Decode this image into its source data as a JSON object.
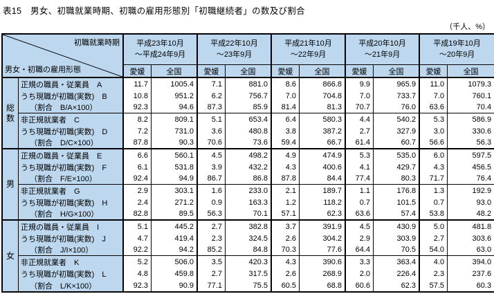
{
  "title": "表15　男女、初職就業時期、初職の雇用形態別「初職継続者」の数及び割合",
  "unit_note": "（千人、%）",
  "colors": {
    "header_bg": "#BDD7EE",
    "border": "#000000",
    "data_bg": "#FFFFFF"
  },
  "header": {
    "diagonal_top_label": "初職就業時期",
    "diagonal_bottom_label": "男女・初職の雇用形態",
    "periods": [
      {
        "line1": "平成23年10月",
        "line2": "～平成24年9月"
      },
      {
        "line1": "平成22年10月",
        "line2": "～23年9月"
      },
      {
        "line1": "平成21年10月",
        "line2": "～22年9月"
      },
      {
        "line1": "平成20年10月",
        "line2": "～21年9月"
      },
      {
        "line1": "平成19年10月",
        "line2": "～20年9月"
      }
    ],
    "region_labels": [
      "愛媛",
      "全国"
    ]
  },
  "groups": [
    {
      "name": "総数",
      "name_lines": [
        "総",
        "数"
      ],
      "rows": [
        {
          "label": "正規の職員・従業員　A",
          "indent": false,
          "values": [
            "11.7",
            "1005.4",
            "7.1",
            "881.0",
            "8.6",
            "866.8",
            "9.9",
            "965.9",
            "11.0",
            "1079.3"
          ]
        },
        {
          "label": "うち現職が初職(実数)　B",
          "indent": false,
          "values": [
            "10.8",
            "951.2",
            "6.2",
            "756.7",
            "7.0",
            "704.8",
            "7.0",
            "733.7",
            "7.0",
            "760.1"
          ]
        },
        {
          "label": "（割合　B/A×100）",
          "indent": true,
          "values": [
            "92.3",
            "94.6",
            "87.3",
            "85.9",
            "81.4",
            "81.3",
            "70.7",
            "76.0",
            "63.6",
            "70.4"
          ]
        },
        {
          "label": "非正規就業者　C",
          "indent": false,
          "values": [
            "8.2",
            "809.1",
            "5.1",
            "653.4",
            "6.4",
            "580.3",
            "4.4",
            "540.2",
            "5.3",
            "586.9"
          ]
        },
        {
          "label": "うち現職が初職(実数)　D",
          "indent": false,
          "values": [
            "7.2",
            "731.0",
            "3.6",
            "480.8",
            "3.8",
            "387.2",
            "2.7",
            "327.9",
            "3.0",
            "330.6"
          ]
        },
        {
          "label": "（割合　D/C×100）",
          "indent": true,
          "values": [
            "87.8",
            "90.3",
            "70.6",
            "73.6",
            "59.4",
            "66.7",
            "61.4",
            "60.7",
            "56.6",
            "56.3"
          ]
        }
      ]
    },
    {
      "name": "男",
      "name_lines": [
        "男"
      ],
      "rows": [
        {
          "label": "正規の職員・従業員　E",
          "indent": false,
          "values": [
            "6.6",
            "560.1",
            "4.5",
            "498.2",
            "4.9",
            "474.9",
            "5.3",
            "535.0",
            "6.0",
            "597.5"
          ]
        },
        {
          "label": "うち現職が初職(実数)　F",
          "indent": false,
          "values": [
            "6.1",
            "531.8",
            "3.9",
            "432.2",
            "4.3",
            "400.6",
            "4.1",
            "429.7",
            "4.3",
            "456.5"
          ]
        },
        {
          "label": "（割合　F/E×100）",
          "indent": true,
          "values": [
            "92.4",
            "94.9",
            "86.7",
            "86.8",
            "87.8",
            "84.4",
            "77.4",
            "80.3",
            "71.7",
            "76.4"
          ]
        },
        {
          "label": "非正規就業者　G",
          "indent": false,
          "values": [
            "2.9",
            "303.1",
            "1.6",
            "233.0",
            "2.1",
            "189.7",
            "1.1",
            "176.8",
            "1.3",
            "192.9"
          ]
        },
        {
          "label": "うち現職が初職(実数)　H",
          "indent": false,
          "values": [
            "2.4",
            "271.2",
            "0.9",
            "163.3",
            "1.2",
            "118.2",
            "0.7",
            "101.5",
            "0.7",
            "93.0"
          ]
        },
        {
          "label": "（割合　H/G×100）",
          "indent": true,
          "values": [
            "82.8",
            "89.5",
            "56.3",
            "70.1",
            "57.1",
            "62.3",
            "63.6",
            "57.4",
            "53.8",
            "48.2"
          ]
        }
      ]
    },
    {
      "name": "女",
      "name_lines": [
        "女"
      ],
      "rows": [
        {
          "label": "正規の職員・従業員　I",
          "indent": false,
          "values": [
            "5.1",
            "445.2",
            "2.7",
            "382.8",
            "3.7",
            "391.9",
            "4.5",
            "430.9",
            "5.0",
            "481.8"
          ]
        },
        {
          "label": "うち現職が初職(実数)　J",
          "indent": false,
          "values": [
            "4.7",
            "419.4",
            "2.3",
            "324.5",
            "2.6",
            "304.2",
            "2.9",
            "303.9",
            "2.7",
            "303.6"
          ]
        },
        {
          "label": "（割合　J/I×100）",
          "indent": true,
          "values": [
            "92.2",
            "94.2",
            "85.2",
            "84.8",
            "70.3",
            "77.6",
            "64.4",
            "70.5",
            "54.0",
            "63.0"
          ]
        },
        {
          "label": "非正規就業者　K",
          "indent": false,
          "values": [
            "5.2",
            "506.0",
            "3.5",
            "420.3",
            "4.3",
            "390.6",
            "3.3",
            "363.4",
            "4.0",
            "394.0"
          ]
        },
        {
          "label": "うち現職が初職(実数)　L",
          "indent": false,
          "values": [
            "4.8",
            "459.8",
            "2.7",
            "317.5",
            "2.6",
            "268.9",
            "2.0",
            "226.4",
            "2.3",
            "237.6"
          ]
        },
        {
          "label": "（割合　L/K×100）",
          "indent": true,
          "values": [
            "92.3",
            "90.9",
            "77.1",
            "75.5",
            "60.5",
            "68.8",
            "60.6",
            "62.3",
            "57.5",
            "60.3"
          ]
        }
      ]
    }
  ]
}
